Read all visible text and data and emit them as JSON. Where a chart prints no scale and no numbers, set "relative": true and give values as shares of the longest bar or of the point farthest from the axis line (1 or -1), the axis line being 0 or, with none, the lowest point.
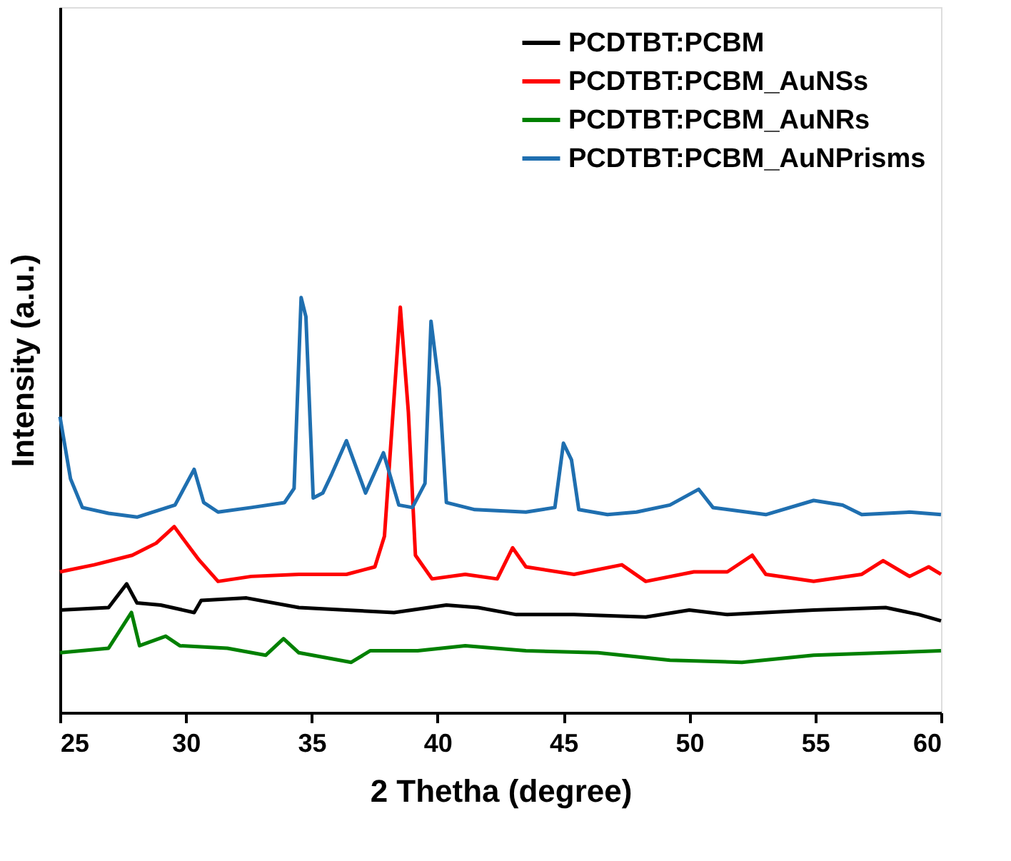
{
  "chart_data": {
    "type": "line",
    "xlabel": "2 Thetha (degree)",
    "ylabel": "Intensity (a.u.)",
    "relative": true,
    "xlim": [
      25,
      60
    ],
    "xticks": [
      25,
      30,
      35,
      40,
      45,
      50,
      55,
      60
    ],
    "tick_labels": "x",
    "grid": false,
    "legend": "top right",
    "line_style": "solid",
    "marker": "none",
    "series": [
      {
        "name": "PCDTBT:PCBM",
        "color": "#000000",
        "x": [
          25,
          26.93,
          27.65,
          28.06,
          29.0,
          30.33,
          30.61,
          32.41,
          34.49,
          36.38,
          38.27,
          40.35,
          41.61,
          43.13,
          45.42,
          48.27,
          50.0,
          51.51,
          54.94,
          57.8,
          59.13,
          60
        ],
        "values": [
          0.247,
          0.253,
          0.31,
          0.264,
          0.259,
          0.241,
          0.27,
          0.276,
          0.253,
          0.247,
          0.241,
          0.259,
          0.253,
          0.236,
          0.236,
          0.23,
          0.247,
          0.236,
          0.247,
          0.253,
          0.236,
          0.221
        ]
      },
      {
        "name": "PCDTBT:PCBM_AuNSs",
        "color": "#ff0000",
        "x": [
          25,
          26.36,
          27.87,
          28.82,
          29.54,
          29.95,
          30.52,
          31.28,
          32.6,
          34.49,
          36.38,
          37.51,
          37.89,
          38.52,
          38.84,
          39.12,
          39.78,
          41.1,
          42.37,
          42.98,
          43.51,
          45.42,
          47.32,
          48.27,
          50.18,
          51.51,
          52.5,
          53.04,
          54.94,
          56.85,
          57.7,
          58.75,
          59.51,
          60
        ],
        "values": [
          0.339,
          0.356,
          0.379,
          0.408,
          0.448,
          0.414,
          0.368,
          0.316,
          0.328,
          0.333,
          0.333,
          0.351,
          0.425,
          0.977,
          0.724,
          0.379,
          0.322,
          0.333,
          0.322,
          0.397,
          0.351,
          0.333,
          0.356,
          0.316,
          0.339,
          0.339,
          0.379,
          0.333,
          0.316,
          0.333,
          0.366,
          0.328,
          0.351,
          0.333
        ]
      },
      {
        "name": "PCDTBT:PCBM_AuNRs",
        "color": "#008000",
        "x": [
          25,
          26.93,
          27.84,
          28.16,
          29.2,
          29.76,
          31.65,
          33.17,
          33.88,
          34.49,
          36.57,
          37.33,
          39.21,
          41.1,
          43.51,
          46.37,
          49.23,
          52.09,
          54.94,
          57.8,
          60
        ],
        "values": [
          0.144,
          0.155,
          0.241,
          0.161,
          0.184,
          0.161,
          0.155,
          0.138,
          0.178,
          0.144,
          0.121,
          0.149,
          0.149,
          0.161,
          0.149,
          0.144,
          0.126,
          0.121,
          0.138,
          0.144,
          0.149
        ]
      },
      {
        "name": "PCDTBT:PCBM_AuNPrisms",
        "color": "#1f6fb0",
        "x": [
          25,
          25.42,
          25.89,
          26.93,
          28.06,
          29.57,
          30.33,
          30.71,
          31.28,
          32.6,
          33.92,
          34.3,
          34.58,
          34.77,
          35.06,
          35.44,
          35.8,
          36.38,
          37.14,
          37.85,
          38.46,
          39.0,
          39.5,
          39.74,
          40.07,
          40.35,
          41.48,
          43.51,
          44.66,
          45.0,
          45.32,
          45.61,
          46.75,
          47.9,
          49.23,
          50.37,
          50.94,
          53.04,
          54.94,
          56.09,
          56.85,
          58.75,
          60
        ],
        "values": [
          0.713,
          0.563,
          0.494,
          0.48,
          0.471,
          0.5,
          0.586,
          0.506,
          0.483,
          0.494,
          0.506,
          0.54,
          1.0,
          0.954,
          0.517,
          0.529,
          0.575,
          0.655,
          0.529,
          0.626,
          0.5,
          0.494,
          0.552,
          0.943,
          0.782,
          0.506,
          0.489,
          0.483,
          0.494,
          0.649,
          0.609,
          0.489,
          0.477,
          0.483,
          0.5,
          0.538,
          0.494,
          0.477,
          0.511,
          0.5,
          0.477,
          0.483,
          0.477
        ]
      }
    ]
  }
}
